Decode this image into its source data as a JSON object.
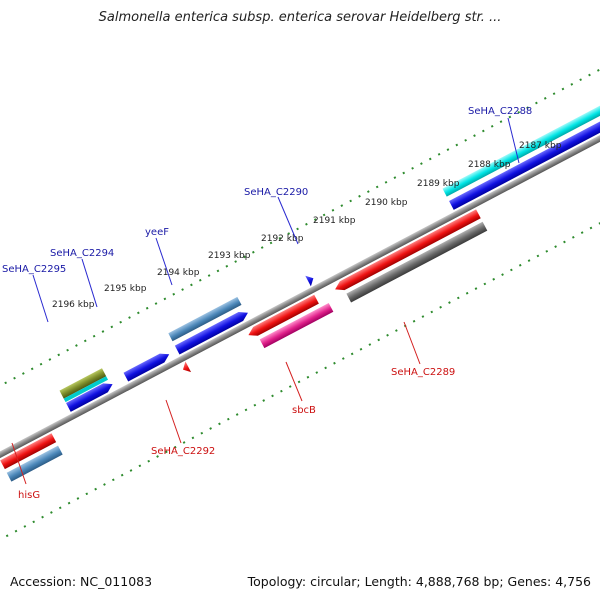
{
  "title": "Salmonella enterica subsp. enterica serovar Heidelberg str. ...",
  "footer": {
    "accession": "Accession: NC_011083",
    "stats": "Topology: circular; Length: 4,888,768 bp; Genes: 4,756"
  },
  "colors": {
    "backbone": "#8a8a8a",
    "tick_track": "#2e8b2e",
    "forward_label": "#1a1aa6",
    "reverse_label": "#cc1111"
  },
  "ruler_labels": [
    "2187 kbp",
    "2188 kbp",
    "2189 kbp",
    "2190 kbp",
    "2191 kbp",
    "2192 kbp",
    "2193 kbp",
    "2194 kbp",
    "2195 kbp",
    "2196 kbp"
  ],
  "forward_gene_labels": [
    "SeHA_C2288",
    "SeHA_C2290",
    "yeeF",
    "SeHA_C2294",
    "SeHA_C2295"
  ],
  "reverse_gene_labels": [
    "SeHA_C2289",
    "sbcB",
    "SeHA_C2292",
    "hisG"
  ],
  "features": [
    {
      "track": "forward-outer",
      "color": "#00e5e5"
    },
    {
      "track": "forward-outer",
      "color": "#4a86b8"
    },
    {
      "track": "forward-outer",
      "color": "#7a8a28"
    },
    {
      "track": "forward-outer",
      "color": "#00cccc"
    },
    {
      "track": "forward-inner",
      "color": "#1010e0"
    },
    {
      "track": "reverse-inner",
      "color": "#ee1111"
    },
    {
      "track": "reverse-outer",
      "color": "#666666"
    },
    {
      "track": "reverse-outer",
      "color": "#e0208a"
    },
    {
      "track": "reverse-outer",
      "color": "#4a86b8"
    }
  ]
}
